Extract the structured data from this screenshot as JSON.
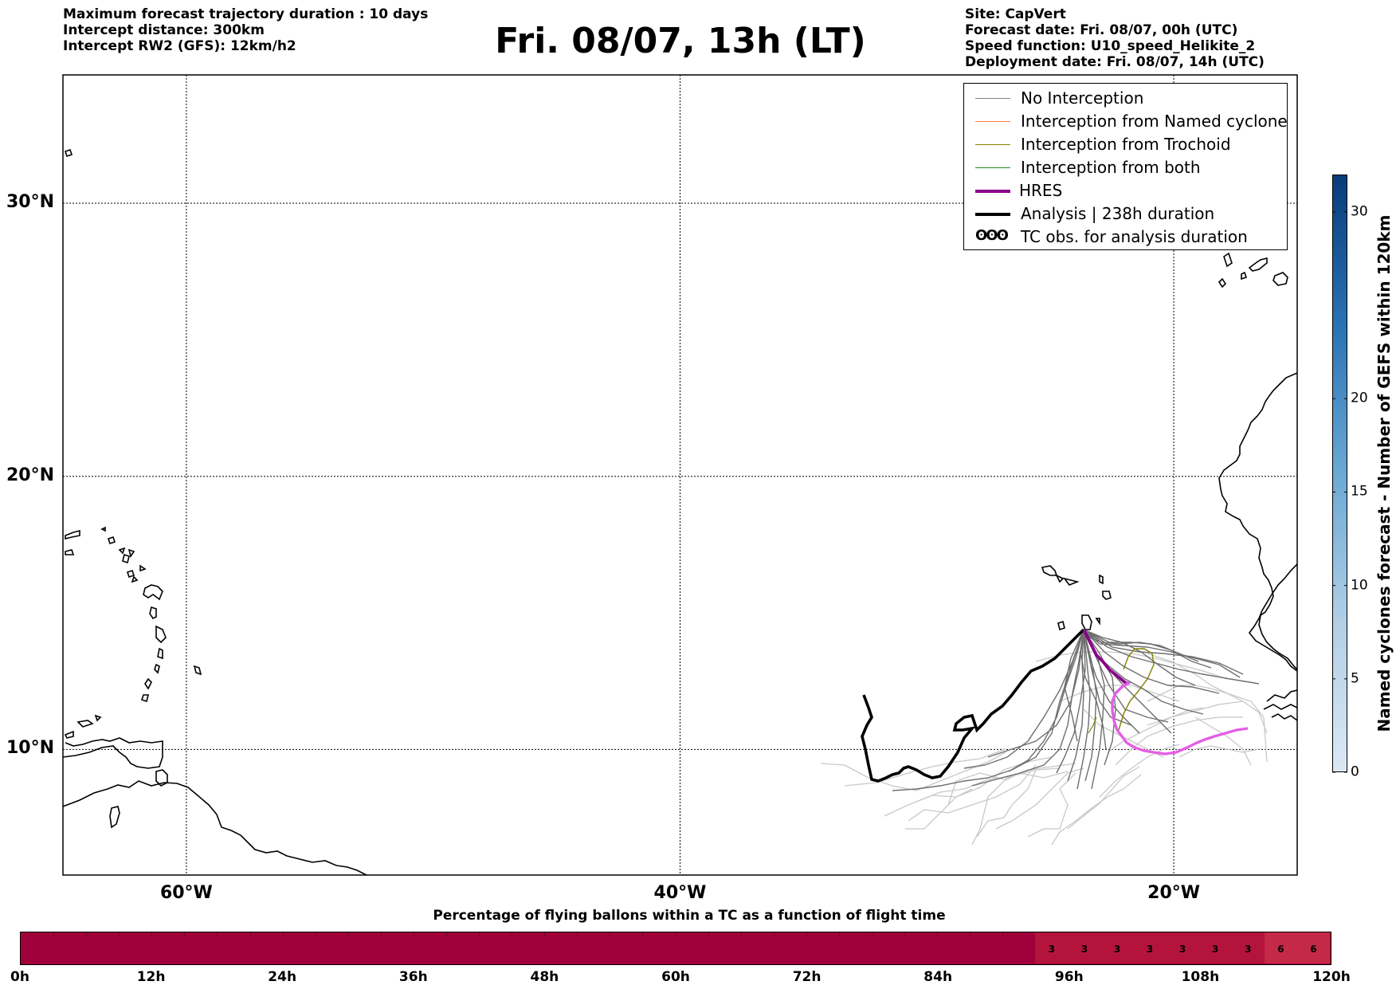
{
  "header": {
    "left_lines": [
      "Maximum forecast trajectory duration : 10 days",
      "Intercept distance: 300km",
      "Intercept RW2 (GFS):  12km/h2"
    ],
    "title": "Fri. 08/07, 13h (LT)",
    "right_lines": [
      "Site: CapVert",
      "Forecast date: Fri. 08/07, 00h (UTC)",
      "Speed function: U10_speed_Helikite_2",
      "Deployment date: Fri. 08/07, 14h (UTC)"
    ]
  },
  "map": {
    "lat_labels": [
      "30°N",
      "20°N",
      "10°N"
    ],
    "lon_labels": [
      "60°W",
      "40°W",
      "20°W"
    ],
    "lat_values": [
      30,
      20,
      10
    ],
    "lon_values": [
      -60,
      -40,
      -20
    ],
    "extent": {
      "lon_min": -65,
      "lon_max": -15,
      "lat_min": 5.4,
      "lat_max": 34.7
    },
    "gridlines": true
  },
  "legend": {
    "items": [
      {
        "label": "No Interception",
        "color": "#808080",
        "style": "thin"
      },
      {
        "label": "Interception from Named cyclone",
        "color": "#ff7f50",
        "style": "thin"
      },
      {
        "label": "Interception from Trochoid",
        "color": "#808000",
        "style": "thin"
      },
      {
        "label": "Interception from both",
        "color": "#228b22",
        "style": "thin"
      },
      {
        "label": "HRES",
        "color": "#8b008b",
        "style": "thick"
      },
      {
        "label": "Analysis | 238h duration",
        "color": "#000000",
        "style": "thick"
      },
      {
        "label": "TC obs. for analysis duration",
        "color": "#000000",
        "style": "symbol",
        "symbol": "ʘʘʘ"
      }
    ]
  },
  "colorbar_vertical": {
    "label": "Named cyclones forecast - Number of GEFS within 120km",
    "ticks": [
      "0",
      "5",
      "10",
      "15",
      "20",
      "30"
    ],
    "tick_values": [
      0,
      5,
      10,
      15,
      20,
      30
    ],
    "min": 0,
    "max": 32
  },
  "colorbar_horizontal": {
    "title": "Percentage of flying ballons within a TC as a function of flight time",
    "ticks": [
      "0h",
      "12h",
      "24h",
      "36h",
      "48h",
      "60h",
      "72h",
      "84h",
      "96h",
      "108h",
      "120h"
    ],
    "tick_hours": [
      0,
      12,
      24,
      36,
      48,
      60,
      72,
      84,
      96,
      108,
      120
    ],
    "max_hours": 120,
    "cell_hours": 3,
    "cells": [
      {
        "from_h": 93,
        "to_h": 96,
        "label": "3"
      },
      {
        "from_h": 96,
        "to_h": 99,
        "label": "3"
      },
      {
        "from_h": 99,
        "to_h": 102,
        "label": "3"
      },
      {
        "from_h": 102,
        "to_h": 105,
        "label": "3"
      },
      {
        "from_h": 105,
        "to_h": 108,
        "label": "3"
      },
      {
        "from_h": 108,
        "to_h": 111,
        "label": "3"
      },
      {
        "from_h": 111,
        "to_h": 114,
        "label": "3"
      },
      {
        "from_h": 114,
        "to_h": 117,
        "label": "6"
      },
      {
        "from_h": 117,
        "to_h": 120,
        "label": "6"
      }
    ],
    "base_color": "#a0003a",
    "color_3": "#b4143c",
    "color_6": "#c42a48"
  },
  "colors": {
    "no_interception": "#808080",
    "no_interception_light": "#c8c8c8",
    "hres_early": "#8b008b",
    "hres_late": "#e55ee5",
    "analysis": "#000000",
    "coast": "#000000"
  }
}
